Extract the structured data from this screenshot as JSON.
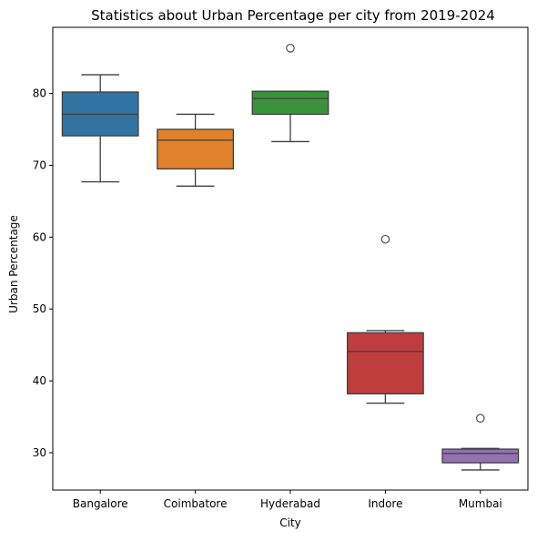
{
  "chart_data": {
    "type": "box",
    "title": "Statistics about Urban Percentage per city from 2019-2024",
    "xlabel": "City",
    "ylabel": "Urban Percentage",
    "ylim": [
      24.8,
      89.2
    ],
    "yticks": [
      30,
      40,
      50,
      60,
      70,
      80
    ],
    "grid": false,
    "legend": "none",
    "categories": [
      "Bangalore",
      "Coimbatore",
      "Hyderabad",
      "Indore",
      "Mumbai"
    ],
    "boxes": [
      {
        "category": "Bangalore",
        "whisker_low": 67.7,
        "q1": 74.1,
        "median": 77.1,
        "q3": 80.2,
        "whisker_high": 82.6,
        "outliers": [],
        "color": "#3274a1"
      },
      {
        "category": "Coimbatore",
        "whisker_low": 67.1,
        "q1": 69.5,
        "median": 73.5,
        "q3": 75.0,
        "whisker_high": 77.1,
        "outliers": [],
        "color": "#e1812c"
      },
      {
        "category": "Hyderabad",
        "whisker_low": 73.3,
        "q1": 77.1,
        "median": 79.3,
        "q3": 80.3,
        "whisker_high": 80.3,
        "outliers": [
          86.3
        ],
        "color": "#3a923a"
      },
      {
        "category": "Indore",
        "whisker_low": 36.9,
        "q1": 38.2,
        "median": 44.1,
        "q3": 46.7,
        "whisker_high": 47.0,
        "outliers": [
          59.7
        ],
        "color": "#c03d3e"
      },
      {
        "category": "Mumbai",
        "whisker_low": 27.6,
        "q1": 28.6,
        "median": 29.9,
        "q3": 30.5,
        "whisker_high": 30.6,
        "outliers": [
          34.8
        ],
        "color": "#9372b2"
      }
    ]
  }
}
